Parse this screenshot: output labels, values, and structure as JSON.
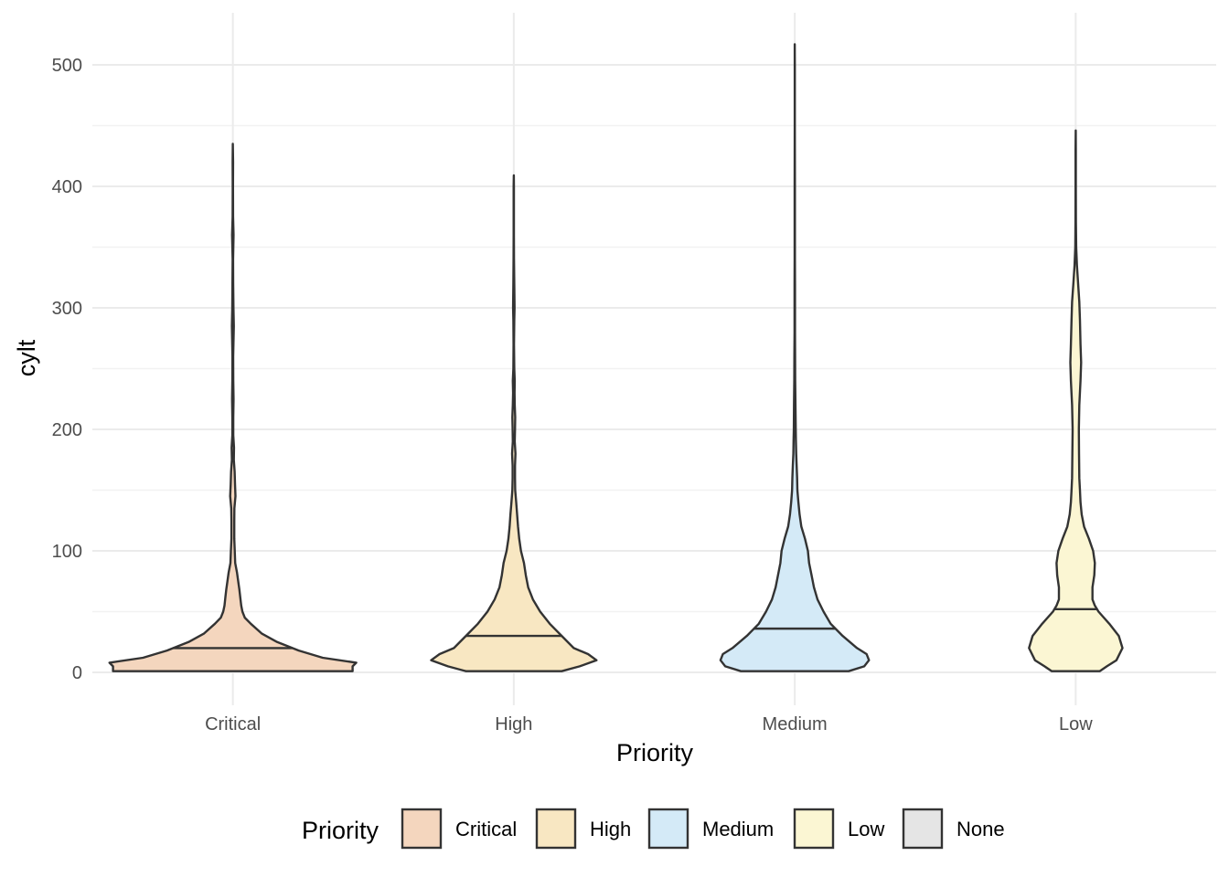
{
  "chart_data": {
    "type": "violin",
    "xlabel": "Priority",
    "ylabel": "cylt",
    "ylim": [
      -25,
      543
    ],
    "yticks": [
      0,
      100,
      200,
      300,
      400,
      500
    ],
    "categories": [
      "Critical",
      "High",
      "Medium",
      "Low"
    ],
    "grid": true,
    "legend": {
      "title": "Priority",
      "placement": "bottom",
      "items": [
        {
          "label": "Critical",
          "color": "#F4D6BE"
        },
        {
          "label": "High",
          "color": "#F8E7C2"
        },
        {
          "label": "Medium",
          "color": "#D4EAF7"
        },
        {
          "label": "Low",
          "color": "#FBF6D3"
        },
        {
          "label": "None",
          "color": "#E5E5E5"
        }
      ]
    },
    "series": [
      {
        "category": "Critical",
        "color": "#F4D6BE",
        "median": 20,
        "min": 1,
        "max": 435,
        "density": [
          [
            1,
            1.0
          ],
          [
            5,
            1.0
          ],
          [
            8,
            1.03
          ],
          [
            12,
            0.75
          ],
          [
            18,
            0.55
          ],
          [
            25,
            0.37
          ],
          [
            32,
            0.24
          ],
          [
            40,
            0.15
          ],
          [
            45,
            0.1
          ],
          [
            50,
            0.08
          ],
          [
            55,
            0.07
          ],
          [
            62,
            0.062
          ],
          [
            68,
            0.055
          ],
          [
            75,
            0.045
          ],
          [
            82,
            0.035
          ],
          [
            90,
            0.02
          ],
          [
            100,
            0.016
          ],
          [
            110,
            0.012
          ],
          [
            125,
            0.012
          ],
          [
            135,
            0.013
          ],
          [
            145,
            0.022
          ],
          [
            155,
            0.018
          ],
          [
            165,
            0.015
          ],
          [
            175,
            0.008
          ],
          [
            185,
            0.01
          ],
          [
            195,
            0.004
          ],
          [
            210,
            0.004
          ],
          [
            225,
            0.006
          ],
          [
            240,
            0.004
          ],
          [
            260,
            0.003
          ],
          [
            285,
            0.008
          ],
          [
            300,
            0.005
          ],
          [
            320,
            0.003
          ],
          [
            340,
            0.002
          ],
          [
            360,
            0.006
          ],
          [
            375,
            0.002
          ],
          [
            400,
            0.001
          ],
          [
            420,
            0.002
          ],
          [
            435,
            0.0
          ]
        ]
      },
      {
        "category": "High",
        "color": "#F8E7C2",
        "median": 30,
        "min": 1,
        "max": 409,
        "density": [
          [
            1,
            0.4
          ],
          [
            5,
            0.55
          ],
          [
            10,
            0.69
          ],
          [
            15,
            0.62
          ],
          [
            20,
            0.5
          ],
          [
            30,
            0.4
          ],
          [
            40,
            0.3
          ],
          [
            50,
            0.22
          ],
          [
            60,
            0.16
          ],
          [
            70,
            0.12
          ],
          [
            80,
            0.1
          ],
          [
            90,
            0.085
          ],
          [
            100,
            0.06
          ],
          [
            110,
            0.045
          ],
          [
            120,
            0.035
          ],
          [
            130,
            0.028
          ],
          [
            140,
            0.02
          ],
          [
            150,
            0.012
          ],
          [
            160,
            0.01
          ],
          [
            170,
            0.01
          ],
          [
            180,
            0.014
          ],
          [
            190,
            0.008
          ],
          [
            200,
            0.01
          ],
          [
            210,
            0.012
          ],
          [
            220,
            0.008
          ],
          [
            230,
            0.006
          ],
          [
            240,
            0.008
          ],
          [
            250,
            0.004
          ],
          [
            270,
            0.002
          ],
          [
            290,
            0.004
          ],
          [
            300,
            0.006
          ],
          [
            320,
            0.004
          ],
          [
            340,
            0.002
          ],
          [
            360,
            0.001
          ],
          [
            380,
            0.001
          ],
          [
            400,
            0.001
          ],
          [
            409,
            0.0
          ]
        ]
      },
      {
        "category": "Medium",
        "color": "#D4EAF7",
        "median": 36,
        "min": 1,
        "max": 517,
        "density": [
          [
            1,
            0.45
          ],
          [
            5,
            0.58
          ],
          [
            10,
            0.62
          ],
          [
            15,
            0.6
          ],
          [
            20,
            0.52
          ],
          [
            30,
            0.4
          ],
          [
            40,
            0.3
          ],
          [
            50,
            0.24
          ],
          [
            60,
            0.19
          ],
          [
            70,
            0.16
          ],
          [
            80,
            0.14
          ],
          [
            90,
            0.12
          ],
          [
            100,
            0.11
          ],
          [
            110,
            0.085
          ],
          [
            120,
            0.055
          ],
          [
            130,
            0.04
          ],
          [
            140,
            0.03
          ],
          [
            150,
            0.022
          ],
          [
            160,
            0.02
          ],
          [
            170,
            0.016
          ],
          [
            180,
            0.012
          ],
          [
            190,
            0.01
          ],
          [
            200,
            0.008
          ],
          [
            220,
            0.006
          ],
          [
            240,
            0.004
          ],
          [
            260,
            0.003
          ],
          [
            280,
            0.002
          ],
          [
            300,
            0.002
          ],
          [
            320,
            0.002
          ],
          [
            340,
            0.001
          ],
          [
            360,
            0.001
          ],
          [
            400,
            0.001
          ],
          [
            450,
            0.0005
          ],
          [
            500,
            0.0005
          ],
          [
            517,
            0.0
          ]
        ]
      },
      {
        "category": "Low",
        "color": "#FBF6D3",
        "median": 52,
        "min": 1,
        "max": 446,
        "density": [
          [
            1,
            0.2
          ],
          [
            5,
            0.26
          ],
          [
            10,
            0.34
          ],
          [
            20,
            0.39
          ],
          [
            30,
            0.36
          ],
          [
            40,
            0.28
          ],
          [
            50,
            0.19
          ],
          [
            55,
            0.16
          ],
          [
            60,
            0.14
          ],
          [
            70,
            0.14
          ],
          [
            80,
            0.155
          ],
          [
            90,
            0.16
          ],
          [
            100,
            0.145
          ],
          [
            110,
            0.11
          ],
          [
            120,
            0.07
          ],
          [
            130,
            0.05
          ],
          [
            140,
            0.04
          ],
          [
            150,
            0.035
          ],
          [
            160,
            0.03
          ],
          [
            180,
            0.028
          ],
          [
            200,
            0.026
          ],
          [
            220,
            0.03
          ],
          [
            240,
            0.04
          ],
          [
            255,
            0.045
          ],
          [
            270,
            0.04
          ],
          [
            290,
            0.035
          ],
          [
            305,
            0.03
          ],
          [
            320,
            0.02
          ],
          [
            335,
            0.01
          ],
          [
            350,
            0.004
          ],
          [
            370,
            0.002
          ],
          [
            400,
            0.001
          ],
          [
            430,
            0.001
          ],
          [
            446,
            0.0
          ]
        ]
      }
    ]
  }
}
